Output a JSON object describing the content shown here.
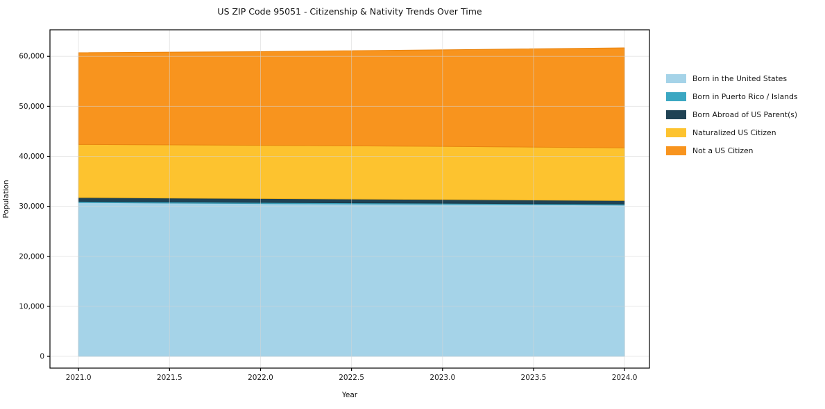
{
  "chart_data": {
    "type": "area",
    "stacked": true,
    "title": "US ZIP Code 95051 - Citizenship & Nativity Trends Over Time",
    "xlabel": "Year",
    "ylabel": "Population",
    "x": [
      2021,
      2022,
      2023,
      2024
    ],
    "series": [
      {
        "name": "Born in the United States",
        "color": "#a5d3e8",
        "edge_color": "#8fc4de",
        "values": [
          30750,
          30550,
          30400,
          30250
        ]
      },
      {
        "name": "Born in Puerto Rico / Islands",
        "color": "#3ba7c2",
        "edge_color": "#3494ad",
        "values": [
          250,
          230,
          220,
          210
        ]
      },
      {
        "name": "Born Abroad of US Parent(s)",
        "color": "#1f4254",
        "edge_color": "#1a3847",
        "values": [
          760,
          780,
          750,
          700
        ]
      },
      {
        "name": "Naturalized US Citizen",
        "color": "#fdc32f",
        "edge_color": "#edb11d",
        "values": [
          10620,
          10640,
          10630,
          10530
        ]
      },
      {
        "name": "Not a US Citizen",
        "color": "#f8941e",
        "edge_color": "#e88410",
        "values": [
          18350,
          18740,
          19300,
          20010
        ]
      }
    ],
    "xticks": {
      "values": [
        2021.0,
        2021.5,
        2022.0,
        2022.5,
        2023.0,
        2023.5,
        2024.0
      ],
      "labels": [
        "2021.0",
        "2021.5",
        "2022.0",
        "2022.5",
        "2023.0",
        "2023.5",
        "2024.0"
      ]
    },
    "yticks": {
      "values": [
        0,
        10000,
        20000,
        30000,
        40000,
        50000,
        60000
      ],
      "labels": [
        "0",
        "10,000",
        "20,000",
        "30,000",
        "40,000",
        "50,000",
        "60,000"
      ]
    },
    "xlim": [
      2020.843,
      2024.137
    ],
    "ylim": [
      -2350,
      65300
    ],
    "grid": true,
    "legend_position": "right-outside",
    "colors": {
      "plot_background": "#ffffff",
      "spine": "#000000",
      "gridline": "rgba(214,214,214,0.55)",
      "tick_label": "#1a1a1a"
    }
  }
}
